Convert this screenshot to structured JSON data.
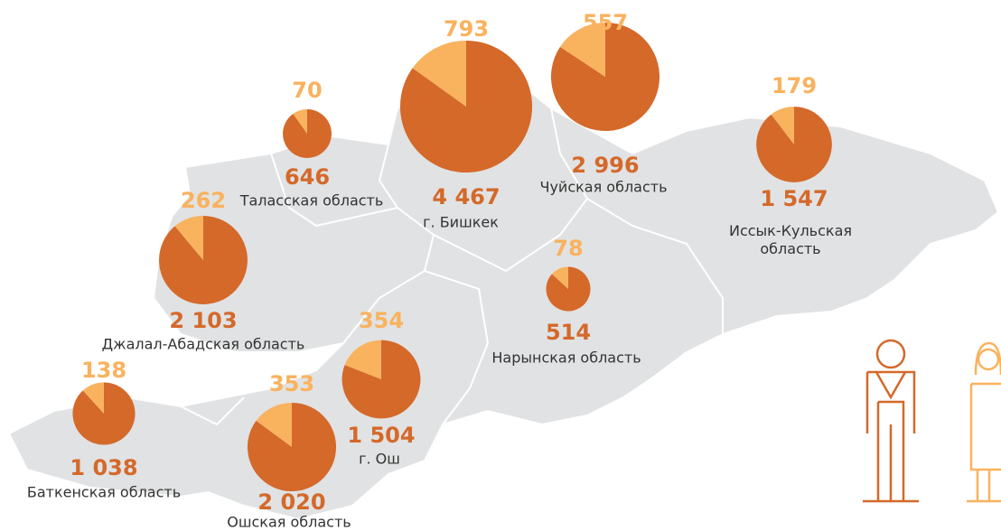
{
  "regions": [
    {
      "name": "Таласская область",
      "values": [
        646,
        70
      ],
      "value_labels": [
        "646",
        "70"
      ]
    },
    {
      "name": "г. Бишкек",
      "values": [
        4467,
        793
      ],
      "value_labels": [
        "4 467",
        "793"
      ]
    },
    {
      "name": "Чуйская область",
      "values": [
        2996,
        557
      ],
      "value_labels": [
        "2 996",
        "557"
      ]
    },
    {
      "name": "Иссык-Кульская область",
      "values": [
        1547,
        179
      ],
      "value_labels": [
        "1 547",
        "179"
      ]
    },
    {
      "name": "Джалал-Абадская область",
      "values": [
        2103,
        262
      ],
      "value_labels": [
        "2 103",
        "262"
      ]
    },
    {
      "name": "Нарынская область",
      "values": [
        514,
        78
      ],
      "value_labels": [
        "514",
        "78"
      ]
    },
    {
      "name": "г. Ош",
      "values": [
        1504,
        354
      ],
      "value_labels": [
        "1 504",
        "354"
      ]
    },
    {
      "name": "Ошская область",
      "values": [
        2020,
        353
      ],
      "value_labels": [
        "2 020",
        "353"
      ]
    },
    {
      "name": "Баткенская область",
      "values": [
        1038,
        138
      ],
      "value_labels": [
        "1 038",
        "138"
      ]
    }
  ],
  "colors": [
    "#d4692a",
    "#f9b25e"
  ]
}
